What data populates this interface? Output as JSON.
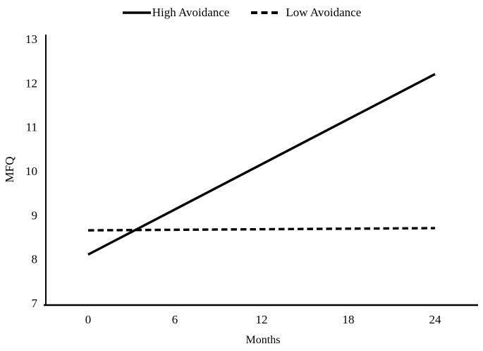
{
  "chart_data": {
    "type": "line",
    "title": "",
    "xlabel": "Months",
    "ylabel": "MFQ",
    "xlim": [
      0,
      24
    ],
    "ylim": [
      7,
      13
    ],
    "x_ticks": [
      0,
      6,
      12,
      18,
      24
    ],
    "y_ticks": [
      7,
      8,
      9,
      10,
      11,
      12,
      13
    ],
    "grid": false,
    "legend_position": "top",
    "line_color": "#000000",
    "series": [
      {
        "name": "High Avoidance",
        "style": "solid",
        "color": "#000000",
        "x": [
          0,
          24
        ],
        "values": [
          8.1,
          12.2
        ]
      },
      {
        "name": "Low Avoidance",
        "style": "dashed",
        "color": "#000000",
        "x": [
          0,
          24
        ],
        "values": [
          8.65,
          8.7
        ]
      }
    ]
  }
}
